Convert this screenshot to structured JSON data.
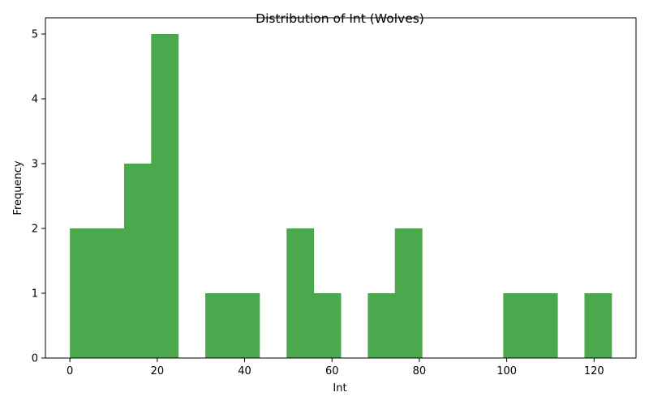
{
  "chart_data": {
    "type": "bar",
    "title": "Distribution of Int (Wolves)",
    "xlabel": "Int",
    "ylabel": "Frequency",
    "bin_edges": [
      0,
      6.2,
      12.4,
      18.6,
      24.8,
      31.0,
      37.2,
      43.4,
      49.6,
      55.8,
      62.0,
      68.2,
      74.4,
      80.6,
      86.8,
      93.0,
      99.2,
      105.4,
      111.6,
      117.8,
      124.0
    ],
    "values": [
      2,
      2,
      3,
      5,
      0,
      1,
      1,
      0,
      2,
      1,
      0,
      1,
      2,
      0,
      0,
      0,
      1,
      1,
      0,
      1
    ],
    "xlim": [
      -5.6,
      129.6
    ],
    "ylim": [
      0,
      5.25
    ],
    "x_ticks": [
      0,
      20,
      40,
      60,
      80,
      100,
      120
    ],
    "y_ticks": [
      0,
      1,
      2,
      3,
      4,
      5
    ],
    "bar_color": "#4ca84c",
    "grid": false
  }
}
